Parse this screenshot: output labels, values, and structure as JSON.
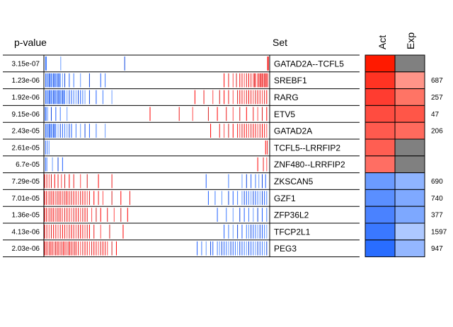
{
  "chart_data": {
    "type": "heatmap",
    "headers": {
      "pvalue": "p-value",
      "set": "Set",
      "act": "Act",
      "exp": "Exp"
    },
    "missing_color": "#808080",
    "rows": [
      {
        "pvalue": "3.15e-07",
        "set": "GATAD2A--TCFL5",
        "act": "#ff1a00",
        "exp": null,
        "count": "",
        "red": [
          0.994,
          0.996,
          0.998
        ],
        "blue": [
          0.004,
          0.008,
          0.072,
          0.357
        ]
      },
      {
        "pvalue": "1.23e-06",
        "set": "SREBF1",
        "act": "#ff3323",
        "exp": "#ff9488",
        "count": "687",
        "red": [
          0.8,
          0.82,
          0.84,
          0.855,
          0.87,
          0.88,
          0.89,
          0.9,
          0.91,
          0.92,
          0.93,
          0.935,
          0.94,
          0.95,
          0.955,
          0.96,
          0.965,
          0.97,
          0.975,
          0.98,
          0.985,
          0.99,
          0.995
        ],
        "blue": [
          0.005,
          0.01,
          0.015,
          0.02,
          0.025,
          0.03,
          0.035,
          0.04,
          0.045,
          0.05,
          0.055,
          0.06,
          0.065,
          0.07,
          0.08,
          0.09,
          0.11,
          0.13,
          0.16,
          0.2,
          0.25,
          0.27
        ]
      },
      {
        "pvalue": "1.92e-06",
        "set": "RARG",
        "act": "#ff3c30",
        "exp": "#ff7465",
        "count": "257",
        "red": [
          0.67,
          0.71,
          0.75,
          0.78,
          0.8,
          0.82,
          0.84,
          0.86,
          0.87,
          0.88,
          0.89,
          0.9,
          0.91,
          0.92,
          0.93,
          0.94,
          0.95,
          0.96,
          0.97,
          0.98,
          0.99
        ],
        "blue": [
          0.005,
          0.01,
          0.015,
          0.02,
          0.025,
          0.03,
          0.035,
          0.04,
          0.045,
          0.05,
          0.055,
          0.06,
          0.065,
          0.07,
          0.075,
          0.08,
          0.085,
          0.09,
          0.1,
          0.11,
          0.12,
          0.13,
          0.14,
          0.15,
          0.16,
          0.17,
          0.18,
          0.2,
          0.23,
          0.26,
          0.3
        ]
      },
      {
        "pvalue": "9.15e-06",
        "set": "ETV5",
        "act": "#ff4c40",
        "exp": "#ff5648",
        "count": "47",
        "red": [
          0.47,
          0.6,
          0.66,
          0.73,
          0.77,
          0.81,
          0.84,
          0.87,
          0.9,
          0.93,
          0.95,
          0.97,
          0.99
        ],
        "blue": [
          0.003,
          0.007,
          0.014,
          0.03,
          0.05,
          0.07,
          0.1
        ]
      },
      {
        "pvalue": "2.43e-05",
        "set": "GATAD2A",
        "act": "#ff5a4e",
        "exp": "#ff6a5d",
        "count": "206",
        "red": [
          0.74,
          0.78,
          0.8,
          0.82,
          0.84,
          0.86,
          0.87,
          0.88,
          0.89,
          0.9,
          0.91,
          0.92,
          0.93,
          0.94,
          0.95,
          0.96,
          0.97,
          0.98,
          0.99
        ],
        "blue": [
          0.005,
          0.01,
          0.015,
          0.02,
          0.025,
          0.03,
          0.035,
          0.04,
          0.045,
          0.05,
          0.06,
          0.07,
          0.08,
          0.09,
          0.1,
          0.11,
          0.12,
          0.14,
          0.16,
          0.18,
          0.2,
          0.23,
          0.27
        ]
      },
      {
        "pvalue": "2.61e-05",
        "set": "TCFL5--LRRFIP2",
        "act": "#ff5e52",
        "exp": null,
        "count": "",
        "red": [
          0.985,
          0.992
        ],
        "blue": [
          0.004,
          0.012,
          0.02
        ]
      },
      {
        "pvalue": "6.7e-05",
        "set": "ZNF480--LRRFIP2",
        "act": "#ff6e63",
        "exp": null,
        "count": "",
        "red": [
          0.95,
          0.975,
          0.99
        ],
        "blue": [
          0.004,
          0.01,
          0.035,
          0.06,
          0.08
        ]
      },
      {
        "pvalue": "7.29e-05",
        "set": "ZKSCAN5",
        "act": "#6b9bff",
        "exp": "#8fb4ff",
        "count": "690",
        "red": [
          0.0,
          0.01,
          0.02,
          0.03,
          0.045,
          0.06,
          0.075,
          0.09,
          0.11,
          0.13,
          0.16,
          0.19,
          0.24,
          0.3
        ],
        "blue": [
          0.72,
          0.82,
          0.88,
          0.9,
          0.92,
          0.94,
          0.955,
          0.97,
          0.985
        ]
      },
      {
        "pvalue": "7.01e-05",
        "set": "GZF1",
        "act": "#5a8fff",
        "exp": "#7fa9ff",
        "count": "740",
        "red": [
          0.0,
          0.008,
          0.016,
          0.024,
          0.032,
          0.04,
          0.048,
          0.056,
          0.064,
          0.072,
          0.08,
          0.088,
          0.096,
          0.104,
          0.112,
          0.12,
          0.13,
          0.14,
          0.15,
          0.16,
          0.17,
          0.18,
          0.19,
          0.2,
          0.22,
          0.24,
          0.26,
          0.3,
          0.34,
          0.38
        ],
        "blue": [
          0.73,
          0.76,
          0.79,
          0.82,
          0.84,
          0.86,
          0.88,
          0.89,
          0.9,
          0.91,
          0.92,
          0.93,
          0.94,
          0.95,
          0.96,
          0.97,
          0.98,
          0.99
        ]
      },
      {
        "pvalue": "1.36e-05",
        "set": "ZFP36L2",
        "act": "#4a82ff",
        "exp": "#7da8ff",
        "count": "377",
        "red": [
          0.0,
          0.008,
          0.016,
          0.024,
          0.032,
          0.04,
          0.048,
          0.056,
          0.064,
          0.072,
          0.08,
          0.09,
          0.1,
          0.11,
          0.12,
          0.13,
          0.14,
          0.15,
          0.16,
          0.17,
          0.18,
          0.19,
          0.21,
          0.23,
          0.25,
          0.28,
          0.31,
          0.34,
          0.37
        ],
        "blue": [
          0.77,
          0.81,
          0.84,
          0.87,
          0.89,
          0.91,
          0.93,
          0.95,
          0.97,
          0.99
        ]
      },
      {
        "pvalue": "4.13e-06",
        "set": "TFCP2L1",
        "act": "#3a78ff",
        "exp": "#adc8ff",
        "count": "1597",
        "red": [
          0.0,
          0.01,
          0.02,
          0.03,
          0.04,
          0.05,
          0.06,
          0.07,
          0.08,
          0.09,
          0.1,
          0.11,
          0.12,
          0.13,
          0.14,
          0.15,
          0.16,
          0.17,
          0.18,
          0.19,
          0.2,
          0.22,
          0.25,
          0.29,
          0.35
        ],
        "blue": [
          0.8,
          0.82,
          0.84,
          0.86,
          0.88,
          0.9,
          0.91,
          0.92,
          0.93,
          0.94,
          0.95,
          0.96,
          0.97,
          0.98,
          0.99
        ]
      },
      {
        "pvalue": "2.03e-06",
        "set": "PEG3",
        "act": "#296dff",
        "exp": "#94b7ff",
        "count": "947",
        "red": [
          0.0,
          0.007,
          0.014,
          0.021,
          0.028,
          0.035,
          0.042,
          0.049,
          0.056,
          0.063,
          0.07,
          0.077,
          0.084,
          0.091,
          0.098,
          0.105,
          0.112,
          0.119,
          0.126,
          0.133,
          0.14,
          0.15,
          0.16,
          0.17,
          0.18,
          0.19,
          0.2,
          0.21,
          0.22,
          0.23,
          0.24,
          0.25,
          0.26,
          0.27,
          0.28,
          0.3,
          0.32
        ],
        "blue": [
          0.68,
          0.7,
          0.72,
          0.74,
          0.75,
          0.77,
          0.78,
          0.79,
          0.8,
          0.81,
          0.82,
          0.83,
          0.84,
          0.85,
          0.86,
          0.87,
          0.88,
          0.89,
          0.9,
          0.91,
          0.92,
          0.93,
          0.94,
          0.95,
          0.96,
          0.97,
          0.98,
          0.99
        ]
      }
    ]
  }
}
